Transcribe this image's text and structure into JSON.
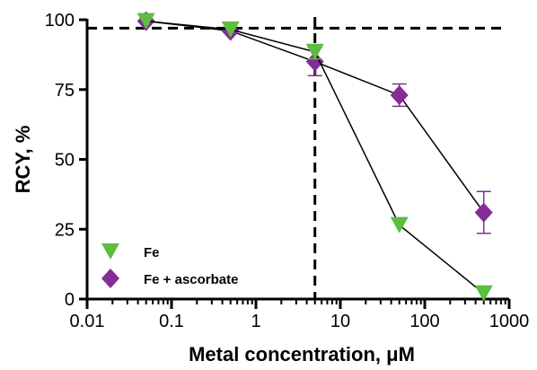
{
  "chart_data": {
    "type": "scatter",
    "xlabel": "Metal concentration, μM",
    "ylabel": "RCY, %",
    "x_scale": "log",
    "xlim": [
      0.01,
      1000
    ],
    "ylim": [
      0,
      100
    ],
    "x_ticks": [
      0.01,
      0.1,
      1,
      10,
      100,
      1000
    ],
    "x_tick_labels": [
      "0.01",
      "0.1",
      "1",
      "10",
      "100",
      "1000"
    ],
    "y_ticks": [
      0,
      25,
      50,
      75,
      100
    ],
    "y_tick_labels": [
      "0",
      "25",
      "50",
      "75",
      "100"
    ],
    "reference_lines": {
      "horizontal_y": 97,
      "vertical_x": 5
    },
    "legend_position": "lower-left",
    "series": [
      {
        "name": "Fe",
        "marker": "triangle-down",
        "color": "#5cbd3f",
        "x": [
          0.05,
          0.5,
          5,
          50,
          500
        ],
        "y": [
          99.5,
          96.5,
          88.5,
          26.5,
          2
        ],
        "err": [
          0,
          0,
          2.5,
          0,
          0
        ]
      },
      {
        "name": "Fe + ascorbate",
        "marker": "diamond",
        "color": "#842c97",
        "x": [
          0.05,
          0.5,
          5,
          50,
          500
        ],
        "y": [
          99.5,
          96,
          85,
          73,
          31
        ],
        "err": [
          0,
          0,
          5,
          4,
          7.5
        ]
      }
    ]
  }
}
